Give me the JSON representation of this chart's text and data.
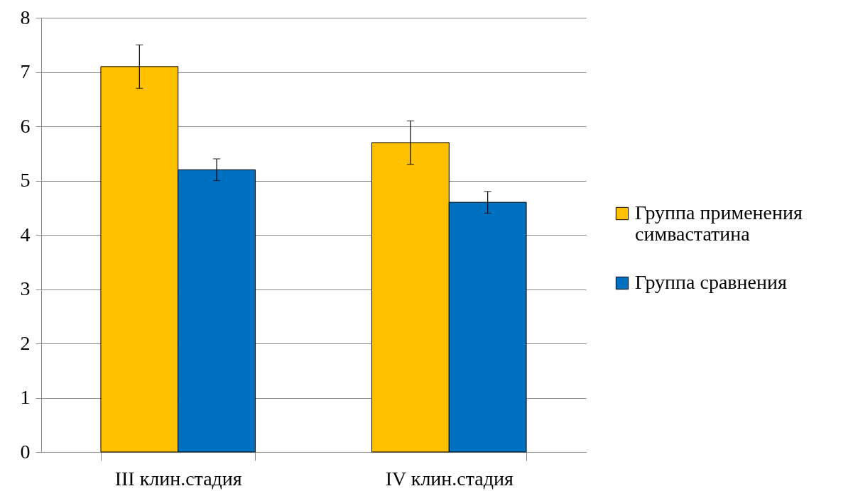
{
  "chart_data": {
    "type": "bar",
    "categories": [
      "III клин.стадия",
      "IV клин.стадия"
    ],
    "series": [
      {
        "name": "Группа применения симвастатина",
        "color": "#ffc000",
        "values": [
          7.1,
          5.7
        ],
        "errors": [
          0.4,
          0.4
        ]
      },
      {
        "name": "Группа сравнения",
        "color": "#0070c0",
        "values": [
          5.2,
          4.6
        ],
        "errors": [
          0.2,
          0.2
        ]
      }
    ],
    "ylim": [
      0,
      8
    ],
    "yticks": [
      0,
      1,
      2,
      3,
      4,
      5,
      6,
      7,
      8
    ],
    "grid": "y",
    "legend": "right"
  }
}
